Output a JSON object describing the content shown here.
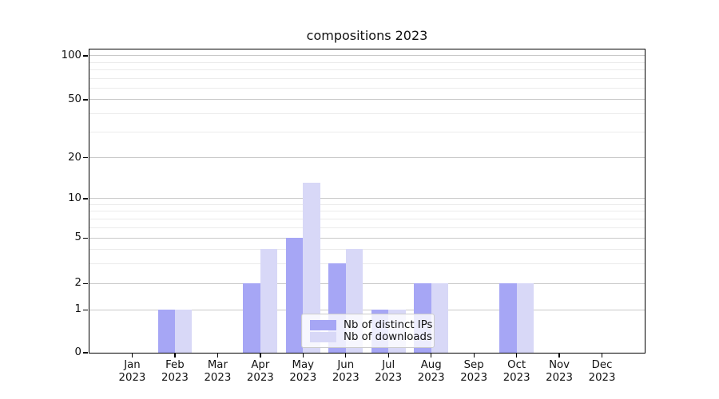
{
  "title": "compositions 2023",
  "chart_data": {
    "type": "bar",
    "title": "compositions 2023",
    "x_months": [
      "Jan",
      "Feb",
      "Mar",
      "Apr",
      "May",
      "Jun",
      "Jul",
      "Aug",
      "Sep",
      "Oct",
      "Nov",
      "Dec"
    ],
    "x_year": "2023",
    "y_ticks": [
      0,
      1,
      2,
      5,
      10,
      20,
      50,
      100
    ],
    "y_minor_ticks": [
      3,
      4,
      6,
      7,
      8,
      9,
      30,
      40,
      60,
      70,
      80,
      90
    ],
    "y_scale": "symlog",
    "ylim": [
      0,
      130
    ],
    "grid": "horizontal",
    "legend_position": "lower-center",
    "series": [
      {
        "name": "Nb of distinct IPs",
        "color": "#a6a6f5",
        "values": [
          0,
          1,
          0,
          2,
          5,
          3,
          1,
          2,
          0,
          2,
          0,
          0
        ]
      },
      {
        "name": "Nb of downloads",
        "color": "#d8d8f7",
        "values": [
          0,
          1,
          0,
          4,
          13,
          4,
          1,
          2,
          0,
          2,
          0,
          0
        ]
      }
    ]
  }
}
